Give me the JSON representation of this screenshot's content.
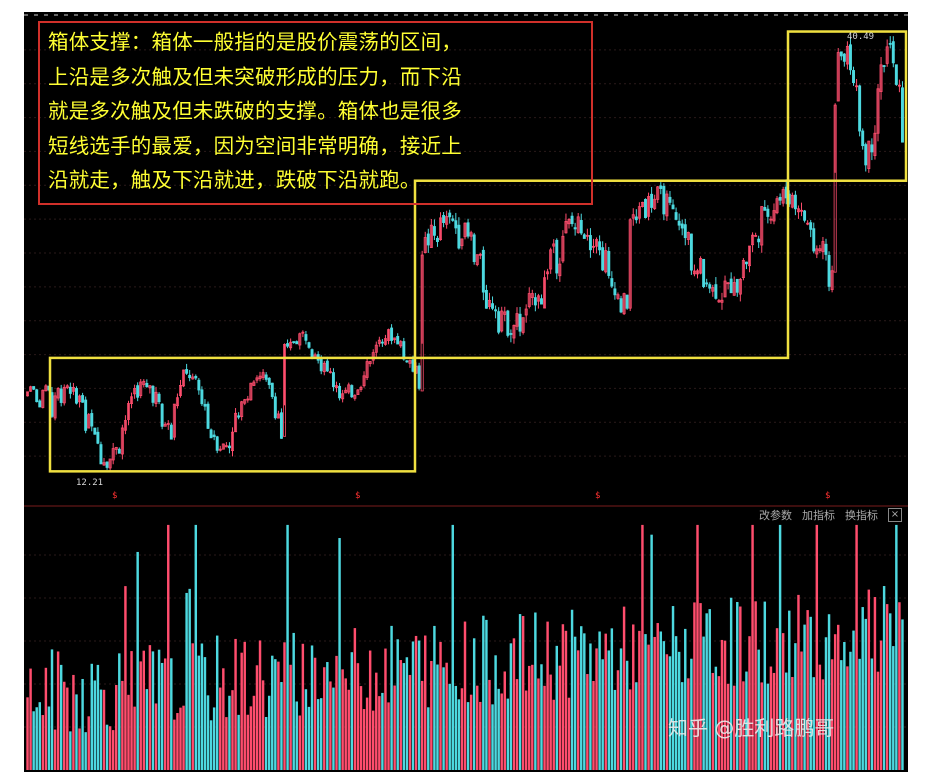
{
  "callout_text": "箱体支撑：箱体一般指的是股价震荡的区间，上沿是多次触及但未突破形成的压力，而下沿就是多次触及但未跌破的支撑。箱体也是很多短线选手的最爱，因为空间非常明确，接近上沿就走，触及下沿就进，跌破下沿就跑。",
  "callout_lines": [
    "箱体支撑：箱体一般指的是股价震荡的区间，",
    "上沿是多次触及但未突破形成的压力，而下沿",
    "就是多次触及但未跌破的支撑。箱体也是很多",
    "短线选手的最爱，因为空间非常明确，接近上",
    "沿就走，触及下沿就进，跌破下沿就跑。"
  ],
  "toolbar": {
    "params_label": "改参数",
    "add_indicator_label": "加指标",
    "switch_indicator_label": "换指标",
    "close_label": "×"
  },
  "watermark": "知乎 @胜利路鹏哥",
  "colors": {
    "background": "#000000",
    "up_candle": "#ff4d6d",
    "down_candle": "#4dd9e0",
    "box": "#f0e040",
    "callout_text": "#ffff33",
    "callout_border": "#d0302a"
  },
  "chart_data": [
    {
      "type": "candlestick",
      "title": "",
      "price_labels": {
        "low": "12.21",
        "high": "40.49"
      },
      "low_value": 12.21,
      "high_value": 40.49,
      "dividend_marker": "$",
      "dividend_marker_count": 4,
      "boxes": [
        {
          "name": "box-1",
          "low": 12.2,
          "high": 19.5
        },
        {
          "name": "box-2",
          "low": 19.5,
          "high": 30.9
        },
        {
          "name": "box-3",
          "low": 30.9,
          "high": 40.5
        }
      ],
      "segments": [
        {
          "count": 8,
          "range": [
            16.2,
            18.0
          ]
        },
        {
          "count": 40,
          "range": [
            12.2,
            18.6
          ]
        },
        {
          "count": 36,
          "range": [
            13.0,
            19.2
          ]
        },
        {
          "count": 45,
          "range": [
            16.5,
            21.6
          ]
        },
        {
          "count": 68,
          "range": [
            20.5,
            29.3
          ]
        },
        {
          "count": 67,
          "range": [
            22.6,
            31.0
          ]
        },
        {
          "count": 23,
          "range": [
            31.5,
            40.49
          ]
        }
      ]
    },
    {
      "type": "bar",
      "title": "",
      "series": [
        {
          "values_description": "daily volume"
        }
      ]
    }
  ]
}
